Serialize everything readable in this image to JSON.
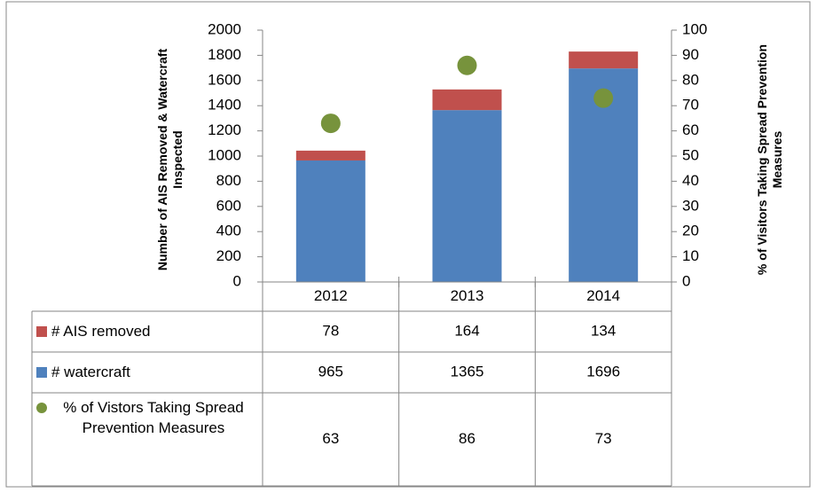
{
  "chart_data": {
    "type": "bar",
    "stacked": true,
    "categories": [
      "2012",
      "2013",
      "2014"
    ],
    "series": [
      {
        "name": "# AIS removed",
        "color": "#c0504d",
        "values": [
          78,
          164,
          134
        ],
        "axis": "y",
        "type": "bar"
      },
      {
        "name": "# watercraft",
        "color": "#4f81bd",
        "values": [
          965,
          1365,
          1696
        ],
        "axis": "y",
        "type": "bar"
      },
      {
        "name": "% of Vistors Taking Spread Prevention Measures",
        "color": "#77933c",
        "values": [
          63,
          86,
          73
        ],
        "axis": "y2",
        "type": "scatter"
      }
    ],
    "ylabel": "Number of AIS Removed & Watercraft Inspected",
    "y2label": "% of Visitors Taking Spread Prevention Measures",
    "ylim": [
      0,
      2000
    ],
    "yticks": [
      0,
      200,
      400,
      600,
      800,
      1000,
      1200,
      1400,
      1600,
      1800,
      2000
    ],
    "y2lim": [
      0,
      100
    ],
    "y2ticks": [
      0,
      10,
      20,
      30,
      40,
      50,
      60,
      70,
      80,
      90,
      100
    ],
    "grid": false,
    "data_table": true
  }
}
